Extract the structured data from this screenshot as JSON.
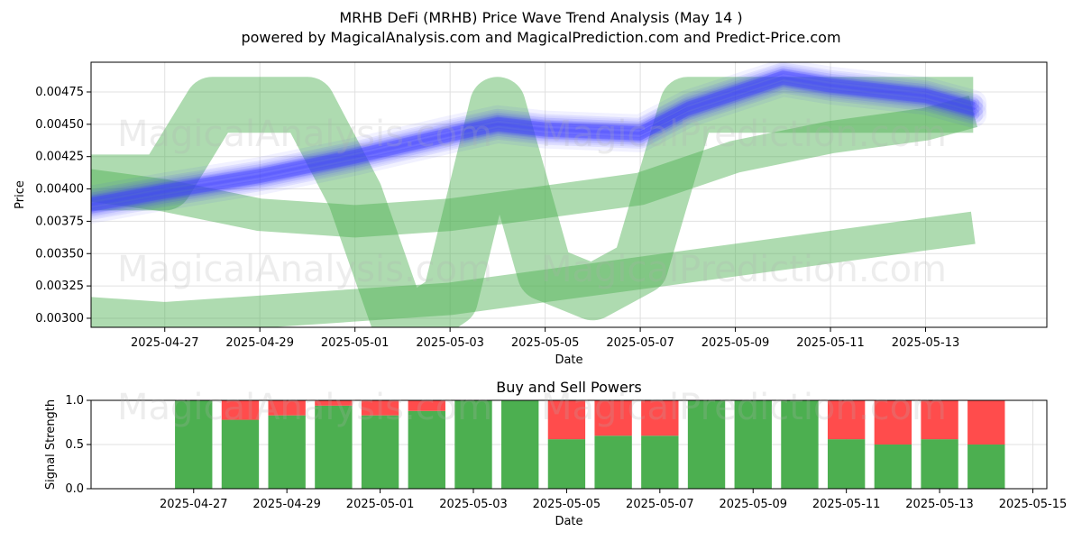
{
  "header": {
    "title": "MRHB DeFi (MRHB) Price Wave Trend Analysis (May 14 )",
    "subtitle": "powered by MagicalAnalysis.com and MagicalPrediction.com and Predict-Price.com"
  },
  "watermarks": [
    "MagicalAnalysis.com",
    "MagicalPrediction.com"
  ],
  "colors": {
    "price_band": "#3b3bff",
    "wave": "#4caf50",
    "buy": "#4caf50",
    "sell": "#ff4c4c",
    "grid": "#e0e0e0"
  },
  "chart_data": [
    {
      "type": "line",
      "title": "",
      "xlabel": "Date",
      "ylabel": "Price",
      "grid": true,
      "xlim": [
        "2025-04-25",
        "2025-05-15"
      ],
      "ylim": [
        0.00293,
        0.00498
      ],
      "x_ticks": [
        "2025-04-27",
        "2025-04-29",
        "2025-05-01",
        "2025-05-03",
        "2025-05-05",
        "2025-05-07",
        "2025-05-09",
        "2025-05-11",
        "2025-05-13"
      ],
      "y_ticks": [
        "0.00300",
        "0.00325",
        "0.00350",
        "0.00375",
        "0.00400",
        "0.00425",
        "0.00450",
        "0.00475"
      ],
      "series": [
        {
          "kind": "price-band",
          "x": [
            "2025-04-25",
            "2025-04-27",
            "2025-04-29",
            "2025-05-01",
            "2025-05-03",
            "2025-05-04",
            "2025-05-05",
            "2025-05-07",
            "2025-05-08",
            "2025-05-10",
            "2025-05-11",
            "2025-05-13",
            "2025-05-14"
          ],
          "y": [
            0.00385,
            0.00398,
            0.0041,
            0.00425,
            0.00442,
            0.0045,
            0.00446,
            0.00443,
            0.00462,
            0.00486,
            0.0048,
            0.00472,
            0.00462
          ]
        },
        {
          "kind": "wave",
          "x": [
            "2025-04-25",
            "2025-04-26",
            "2025-04-27",
            "2025-04-28",
            "2025-04-29",
            "2025-04-30",
            "2025-05-01",
            "2025-05-02",
            "2025-05-03",
            "2025-05-04",
            "2025-05-05",
            "2025-05-06",
            "2025-05-07",
            "2025-05-08",
            "2025-05-09",
            "2025-05-10",
            "2025-05-11",
            "2025-05-12",
            "2025-05-13",
            "2025-05-14"
          ],
          "y": [
            0.00405,
            0.00405,
            0.00405,
            0.00465,
            0.00465,
            0.00465,
            0.00395,
            0.0029,
            0.00315,
            0.00465,
            0.00335,
            0.0032,
            0.0034,
            0.00465,
            0.00465,
            0.00465,
            0.00465,
            0.00465,
            0.00465,
            0.00465
          ]
        },
        {
          "kind": "wave",
          "x": [
            "2025-04-25",
            "2025-04-27",
            "2025-04-29",
            "2025-05-01",
            "2025-05-03",
            "2025-05-05",
            "2025-05-07",
            "2025-05-09",
            "2025-05-11",
            "2025-05-13",
            "2025-05-14"
          ],
          "y": [
            0.00405,
            0.00395,
            0.0038,
            0.00375,
            0.0038,
            0.0039,
            0.004,
            0.00425,
            0.0044,
            0.0045,
            0.0046
          ]
        },
        {
          "kind": "wave",
          "x": [
            "2025-04-25",
            "2025-04-27",
            "2025-04-29",
            "2025-05-01",
            "2025-05-03",
            "2025-05-05",
            "2025-05-07",
            "2025-05-09",
            "2025-05-11",
            "2025-05-13",
            "2025-05-14"
          ],
          "y": [
            0.00305,
            0.003,
            0.00305,
            0.0031,
            0.00315,
            0.00325,
            0.00335,
            0.00345,
            0.00355,
            0.00365,
            0.0037
          ]
        }
      ]
    },
    {
      "type": "bar",
      "title": "Buy and Sell Powers",
      "xlabel": "Date",
      "ylabel": "Signal Strength",
      "grid": true,
      "ylim": [
        0,
        1
      ],
      "xlim": [
        "2025-04-25",
        "2025-05-15"
      ],
      "x_ticks": [
        "2025-04-27",
        "2025-04-29",
        "2025-05-01",
        "2025-05-03",
        "2025-05-05",
        "2025-05-07",
        "2025-05-09",
        "2025-05-11",
        "2025-05-13",
        "2025-05-15"
      ],
      "y_ticks": [
        "0.0",
        "0.5",
        "1.0"
      ],
      "categories": [
        "2025-04-27",
        "2025-04-28",
        "2025-04-29",
        "2025-04-30",
        "2025-05-01",
        "2025-05-02",
        "2025-05-03",
        "2025-05-04",
        "2025-05-05",
        "2025-05-06",
        "2025-05-07",
        "2025-05-08",
        "2025-05-09",
        "2025-05-10",
        "2025-05-11",
        "2025-05-12",
        "2025-05-13",
        "2025-05-14"
      ],
      "series": [
        {
          "name": "Buy",
          "values": [
            1.0,
            0.78,
            0.83,
            0.94,
            0.83,
            0.88,
            1.0,
            1.0,
            0.56,
            0.6,
            0.6,
            1.0,
            1.0,
            1.0,
            0.56,
            0.5,
            0.56,
            0.5
          ]
        },
        {
          "name": "Sell",
          "values": [
            0.0,
            0.22,
            0.17,
            0.06,
            0.17,
            0.12,
            0.0,
            0.0,
            0.44,
            0.4,
            0.4,
            0.0,
            0.0,
            0.0,
            0.44,
            0.5,
            0.44,
            0.5
          ]
        }
      ]
    }
  ]
}
